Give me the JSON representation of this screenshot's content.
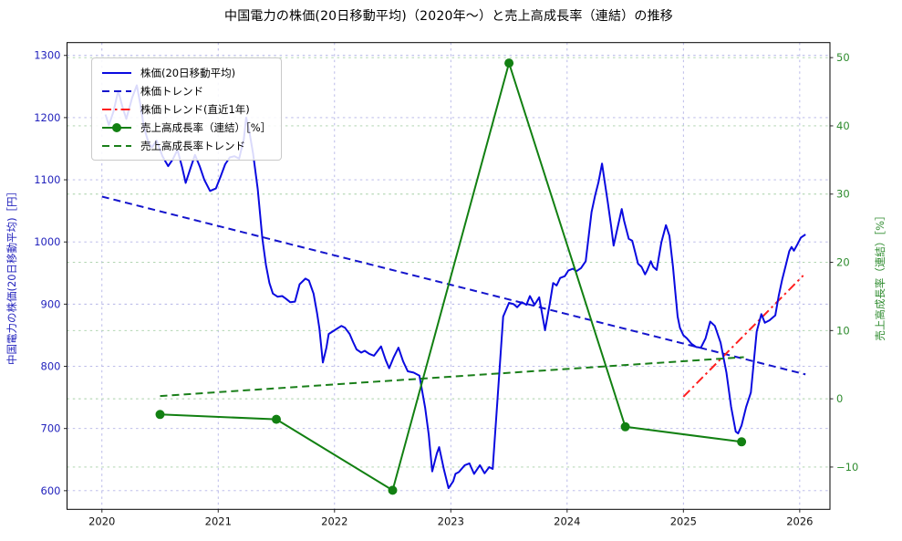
{
  "title": "中国電力の株価(20日移動平均)（2020年～）と売上高成長率（連結）の推移",
  "colors": {
    "price_line": "#0a0ae0",
    "price_trend": "#1515cc",
    "price_trend_recent": "#ff2020",
    "growth_line": "#128012",
    "growth_trend": "#1a7f1a",
    "grid_blue": "#b2b2e6",
    "grid_green": "#a6cfa6",
    "tick_label_left": "#2323bd",
    "tick_label_right": "#2e8b2e",
    "tick_label_x": "#111111",
    "frame": "#000000"
  },
  "chart_data": {
    "type": "line",
    "title": "中国電力の株価(20日移動平均)（2020年～）と売上高成長率（連結）の推移",
    "xlabel": "",
    "ylabel_left": "中国電力の株価(20日移動平均)［円］",
    "ylabel_right": "売上高成長率（連結）［%］",
    "legend_position": "upper left",
    "grid": true,
    "layout": {
      "xlim": [
        2019.7,
        2026.26
      ],
      "ylim_left": [
        570,
        1320.6
      ],
      "ylim_right": [
        -16.2,
        52.2
      ],
      "xticks": [
        2020,
        2021,
        2022,
        2023,
        2024,
        2025,
        2026
      ],
      "yticks_left": [
        600,
        700,
        800,
        900,
        1000,
        1100,
        1200,
        1300
      ],
      "yticks_right": [
        -10,
        0,
        10,
        20,
        30,
        40,
        50
      ]
    },
    "series": [
      {
        "id": "price-ma20",
        "name": "株価(20日移動平均)",
        "axis": "left",
        "style": "solid",
        "marker": false,
        "color": "#0a0ae0",
        "z": 3,
        "points": [
          [
            2020.03,
            1205
          ],
          [
            2020.06,
            1188
          ],
          [
            2020.1,
            1210
          ],
          [
            2020.14,
            1243
          ],
          [
            2020.18,
            1215
          ],
          [
            2020.21,
            1198
          ],
          [
            2020.26,
            1232
          ],
          [
            2020.3,
            1252
          ],
          [
            2020.33,
            1222
          ],
          [
            2020.36,
            1185
          ],
          [
            2020.4,
            1160
          ],
          [
            2020.43,
            1152
          ],
          [
            2020.47,
            1163
          ],
          [
            2020.52,
            1138
          ],
          [
            2020.57,
            1122
          ],
          [
            2020.61,
            1133
          ],
          [
            2020.65,
            1148
          ],
          [
            2020.69,
            1120
          ],
          [
            2020.72,
            1095
          ],
          [
            2020.76,
            1118
          ],
          [
            2020.8,
            1140
          ],
          [
            2020.84,
            1122
          ],
          [
            2020.88,
            1100
          ],
          [
            2020.93,
            1082
          ],
          [
            2020.98,
            1086
          ],
          [
            2021.02,
            1105
          ],
          [
            2021.06,
            1125
          ],
          [
            2021.1,
            1136
          ],
          [
            2021.14,
            1138
          ],
          [
            2021.18,
            1134
          ],
          [
            2021.22,
            1165
          ],
          [
            2021.24,
            1200
          ],
          [
            2021.27,
            1175
          ],
          [
            2021.3,
            1142
          ],
          [
            2021.34,
            1085
          ],
          [
            2021.38,
            1005
          ],
          [
            2021.41,
            963
          ],
          [
            2021.44,
            934
          ],
          [
            2021.47,
            917
          ],
          [
            2021.51,
            912
          ],
          [
            2021.55,
            913
          ],
          [
            2021.58,
            909
          ],
          [
            2021.62,
            903
          ],
          [
            2021.66,
            904
          ],
          [
            2021.7,
            932
          ],
          [
            2021.75,
            941
          ],
          [
            2021.78,
            938
          ],
          [
            2021.82,
            917
          ],
          [
            2021.85,
            885
          ],
          [
            2021.87,
            861
          ],
          [
            2021.9,
            806
          ],
          [
            2021.93,
            830
          ],
          [
            2021.95,
            852
          ],
          [
            2022.0,
            858
          ],
          [
            2022.06,
            865
          ],
          [
            2022.09,
            862
          ],
          [
            2022.13,
            852
          ],
          [
            2022.16,
            839
          ],
          [
            2022.19,
            827
          ],
          [
            2022.23,
            822
          ],
          [
            2022.26,
            825
          ],
          [
            2022.3,
            820
          ],
          [
            2022.34,
            817
          ],
          [
            2022.4,
            832
          ],
          [
            2022.44,
            810
          ],
          [
            2022.47,
            797
          ],
          [
            2022.51,
            815
          ],
          [
            2022.55,
            830
          ],
          [
            2022.59,
            808
          ],
          [
            2022.63,
            792
          ],
          [
            2022.68,
            790
          ],
          [
            2022.73,
            785
          ],
          [
            2022.78,
            733
          ],
          [
            2022.81,
            690
          ],
          [
            2022.84,
            631
          ],
          [
            2022.88,
            660
          ],
          [
            2022.9,
            670
          ],
          [
            2022.94,
            635
          ],
          [
            2022.98,
            604
          ],
          [
            2023.02,
            615
          ],
          [
            2023.04,
            627
          ],
          [
            2023.07,
            630
          ],
          [
            2023.12,
            641
          ],
          [
            2023.16,
            644
          ],
          [
            2023.2,
            627
          ],
          [
            2023.25,
            641
          ],
          [
            2023.29,
            628
          ],
          [
            2023.33,
            638
          ],
          [
            2023.36,
            635
          ],
          [
            2023.4,
            743
          ],
          [
            2023.45,
            880
          ],
          [
            2023.5,
            902
          ],
          [
            2023.54,
            900
          ],
          [
            2023.57,
            895
          ],
          [
            2023.61,
            903
          ],
          [
            2023.65,
            899
          ],
          [
            2023.68,
            913
          ],
          [
            2023.72,
            899
          ],
          [
            2023.76,
            911
          ],
          [
            2023.81,
            858
          ],
          [
            2023.85,
            900
          ],
          [
            2023.88,
            934
          ],
          [
            2023.91,
            930
          ],
          [
            2023.94,
            942
          ],
          [
            2023.98,
            945
          ],
          [
            2024.01,
            954
          ],
          [
            2024.05,
            957
          ],
          [
            2024.08,
            953
          ],
          [
            2024.12,
            958
          ],
          [
            2024.16,
            969
          ],
          [
            2024.18,
            1001
          ],
          [
            2024.21,
            1048
          ],
          [
            2024.24,
            1074
          ],
          [
            2024.27,
            1096
          ],
          [
            2024.3,
            1126
          ],
          [
            2024.32,
            1101
          ],
          [
            2024.35,
            1064
          ],
          [
            2024.38,
            1023
          ],
          [
            2024.4,
            994
          ],
          [
            2024.44,
            1028
          ],
          [
            2024.47,
            1053
          ],
          [
            2024.49,
            1034
          ],
          [
            2024.53,
            1005
          ],
          [
            2024.56,
            1002
          ],
          [
            2024.59,
            980
          ],
          [
            2024.61,
            965
          ],
          [
            2024.64,
            960
          ],
          [
            2024.67,
            948
          ],
          [
            2024.69,
            955
          ],
          [
            2024.72,
            969
          ],
          [
            2024.74,
            960
          ],
          [
            2024.77,
            955
          ],
          [
            2024.81,
            999
          ],
          [
            2024.85,
            1027
          ],
          [
            2024.88,
            1010
          ],
          [
            2024.91,
            960
          ],
          [
            2024.93,
            920
          ],
          [
            2024.95,
            880
          ],
          [
            2024.97,
            862
          ],
          [
            2025.0,
            850
          ],
          [
            2025.03,
            845
          ],
          [
            2025.07,
            836
          ],
          [
            2025.11,
            831
          ],
          [
            2025.15,
            830
          ],
          [
            2025.19,
            845
          ],
          [
            2025.23,
            872
          ],
          [
            2025.27,
            865
          ],
          [
            2025.32,
            838
          ],
          [
            2025.37,
            790
          ],
          [
            2025.41,
            735
          ],
          [
            2025.45,
            695
          ],
          [
            2025.47,
            692
          ],
          [
            2025.5,
            705
          ],
          [
            2025.54,
            735
          ],
          [
            2025.58,
            758
          ],
          [
            2025.63,
            856
          ],
          [
            2025.67,
            884
          ],
          [
            2025.7,
            870
          ],
          [
            2025.74,
            874
          ],
          [
            2025.79,
            882
          ],
          [
            2025.82,
            914
          ],
          [
            2025.85,
            940
          ],
          [
            2025.88,
            962
          ],
          [
            2025.91,
            985
          ],
          [
            2025.93,
            992
          ],
          [
            2025.95,
            986
          ],
          [
            2025.98,
            996
          ],
          [
            2026.01,
            1007
          ],
          [
            2026.05,
            1012
          ]
        ]
      },
      {
        "id": "price-trend",
        "name": "株価トレンド",
        "axis": "left",
        "style": "dashed",
        "marker": false,
        "color": "#1515cc",
        "z": 1,
        "points": [
          [
            2020.0,
            1073
          ],
          [
            2026.05,
            787
          ]
        ]
      },
      {
        "id": "price-trend-recent",
        "name": "株価トレンド(直近1年)",
        "axis": "left",
        "style": "dashdot",
        "marker": false,
        "color": "#ff2020",
        "z": 2,
        "points": [
          [
            2025.0,
            751
          ],
          [
            2026.03,
            946
          ]
        ]
      },
      {
        "id": "sales-growth",
        "name": "売上高成長率（連結）［%］",
        "axis": "right",
        "style": "solid",
        "marker": true,
        "color": "#128012",
        "z": 5,
        "points": [
          [
            2020.5,
            -2.3
          ],
          [
            2021.5,
            -3.0
          ],
          [
            2022.5,
            -13.4
          ],
          [
            2023.5,
            49.2
          ],
          [
            2024.5,
            -4.1
          ],
          [
            2025.5,
            -6.3
          ]
        ]
      },
      {
        "id": "sales-growth-trend",
        "name": "売上高成長率トレンド",
        "axis": "right",
        "style": "dashed",
        "marker": false,
        "color": "#1a7f1a",
        "z": 4,
        "points": [
          [
            2020.5,
            0.4
          ],
          [
            2025.52,
            6.1
          ]
        ]
      }
    ]
  }
}
